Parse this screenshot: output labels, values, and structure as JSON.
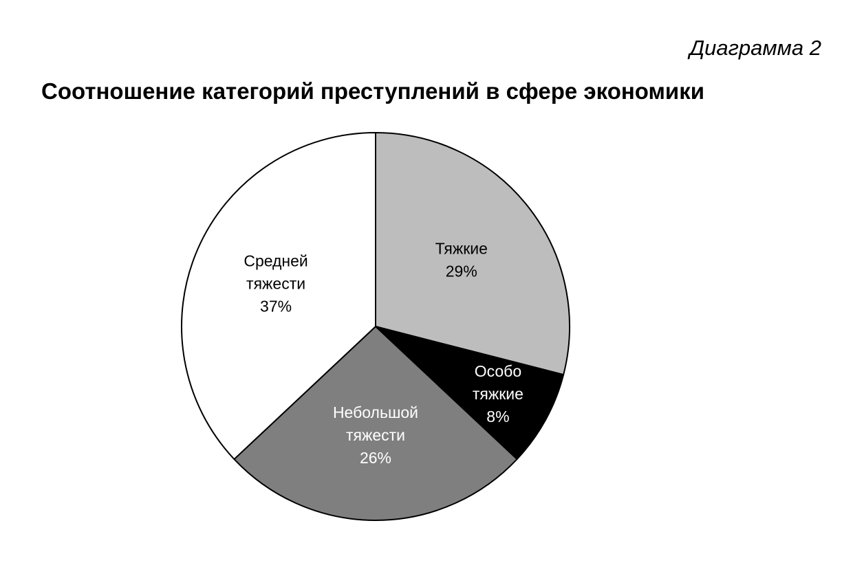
{
  "header": {
    "diagram_number": "Диаграмма 2"
  },
  "chart_data": {
    "type": "pie",
    "title": "Соотношение категорий преступлений в сфере экономики",
    "start_angle_deg": 0,
    "direction": "clockwise",
    "slices": [
      {
        "label_lines": [
          "Тяжкие"
        ],
        "value": 29,
        "value_label": "29%",
        "fill": "#bdbdbd",
        "text_color": "#000000"
      },
      {
        "label_lines": [
          "Особо",
          "тяжкие"
        ],
        "value": 8,
        "value_label": "8%",
        "fill": "#000000",
        "text_color": "#ffffff"
      },
      {
        "label_lines": [
          "Небольшой",
          "тяжести"
        ],
        "value": 26,
        "value_label": "26%",
        "fill": "#7f7f7f",
        "text_color": "#ffffff"
      },
      {
        "label_lines": [
          "Средней",
          "тяжести"
        ],
        "value": 37,
        "value_label": "37%",
        "fill": "#ffffff",
        "text_color": "#000000"
      }
    ]
  }
}
